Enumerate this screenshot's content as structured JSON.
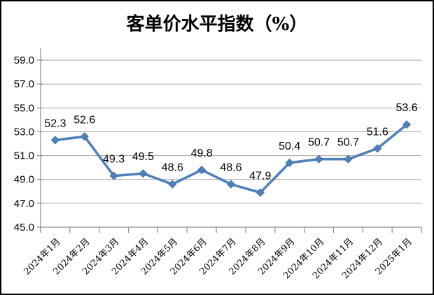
{
  "chart_data": {
    "type": "line",
    "title": "客单价水平指数（%）",
    "categories": [
      "2024年1月",
      "2024年2月",
      "2024年3月",
      "2024年4月",
      "2024年5月",
      "2024年6月",
      "2024年7月",
      "2024年8月",
      "2024年9月",
      "2024年10月",
      "2024年11月",
      "2024年12月",
      "2025年1月"
    ],
    "values": [
      52.3,
      52.6,
      49.3,
      49.5,
      48.6,
      49.8,
      48.6,
      47.9,
      50.4,
      50.7,
      50.7,
      51.6,
      53.6
    ],
    "data_labels": [
      "52.3",
      "52.6",
      "49.3",
      "49.5",
      "48.6",
      "49.8",
      "48.6",
      "47.9",
      "50.4",
      "50.7",
      "50.7",
      "51.6",
      "53.6"
    ],
    "xlabel": "",
    "ylabel": "",
    "ylim": [
      45,
      60
    ],
    "yticks": [
      45,
      47,
      49,
      51,
      53,
      55,
      57,
      59
    ],
    "ytick_labels": [
      "45.0",
      "47.0",
      "49.0",
      "51.0",
      "53.0",
      "55.0",
      "57.0",
      "59.0"
    ],
    "grid": true,
    "legend": "none",
    "marker": "diamond",
    "colors": {
      "line": "#4F81BD",
      "marker_fill": "#4F81BD",
      "marker_edge": "#3A699E",
      "gridline": "#A6A6A6",
      "axis": "#8C8C8C",
      "text": "#000000",
      "background": "#FFFFFF",
      "border": "#000000"
    }
  }
}
